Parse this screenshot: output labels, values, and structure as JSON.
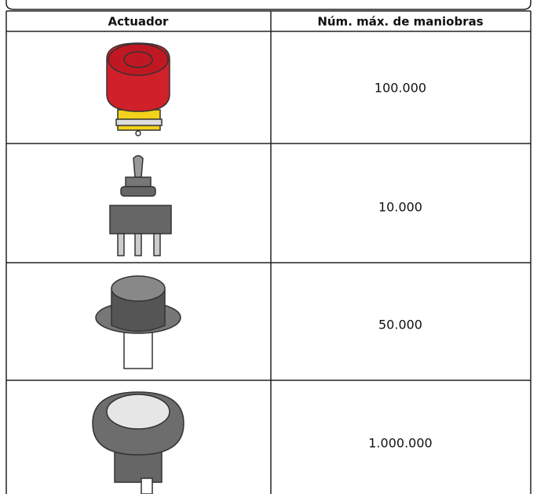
{
  "table": {
    "header": [
      "Actuador",
      "Núm. máx. de maniobras"
    ],
    "values": [
      "100.000",
      "10.000",
      "50.000",
      "1.000.000"
    ]
  }
}
